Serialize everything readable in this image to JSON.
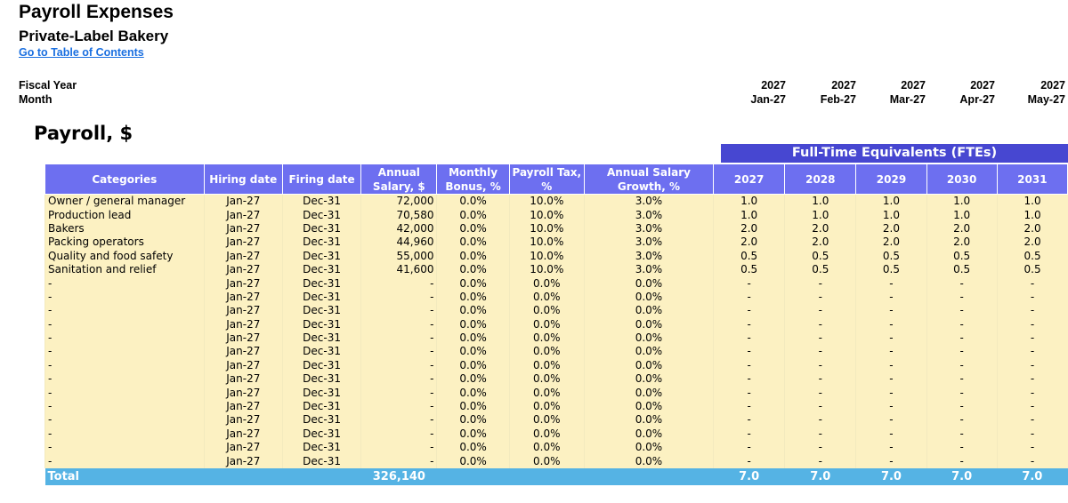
{
  "header": {
    "title": "Payroll Expenses",
    "subtitle": "Private-Label Bakery",
    "toc_link": "Go to Table of Contents",
    "fiscal_year_label": "Fiscal Year",
    "month_label": "Month",
    "months": [
      {
        "year": "2027",
        "month": "Jan-27"
      },
      {
        "year": "2027",
        "month": "Feb-27"
      },
      {
        "year": "2027",
        "month": "Mar-27"
      },
      {
        "year": "2027",
        "month": "Apr-27"
      },
      {
        "year": "2027",
        "month": "May-27"
      }
    ]
  },
  "section_title": "Payroll, $",
  "fte_banner": "Full-Time Equivalents (FTEs)",
  "columns": [
    "Categories",
    "Hiring date",
    "Firing date",
    "Annual Salary, $",
    "Monthly Bonus, %",
    "Payroll Tax, %",
    "Annual Salary Growth, %",
    "2027",
    "2028",
    "2029",
    "2030",
    "2031"
  ],
  "rows": [
    {
      "category": "Owner / general manager",
      "hiring": "Jan-27",
      "firing": "Dec-31",
      "salary": "72,000",
      "bonus": "0.0%",
      "tax": "10.0%",
      "growth": "3.0%",
      "fte": [
        "1.0",
        "1.0",
        "1.0",
        "1.0",
        "1.0"
      ]
    },
    {
      "category": "Production lead",
      "hiring": "Jan-27",
      "firing": "Dec-31",
      "salary": "70,580",
      "bonus": "0.0%",
      "tax": "10.0%",
      "growth": "3.0%",
      "fte": [
        "1.0",
        "1.0",
        "1.0",
        "1.0",
        "1.0"
      ]
    },
    {
      "category": "Bakers",
      "hiring": "Jan-27",
      "firing": "Dec-31",
      "salary": "42,000",
      "bonus": "0.0%",
      "tax": "10.0%",
      "growth": "3.0%",
      "fte": [
        "2.0",
        "2.0",
        "2.0",
        "2.0",
        "2.0"
      ]
    },
    {
      "category": "Packing operators",
      "hiring": "Jan-27",
      "firing": "Dec-31",
      "salary": "44,960",
      "bonus": "0.0%",
      "tax": "10.0%",
      "growth": "3.0%",
      "fte": [
        "2.0",
        "2.0",
        "2.0",
        "2.0",
        "2.0"
      ]
    },
    {
      "category": "Quality and food safety",
      "hiring": "Jan-27",
      "firing": "Dec-31",
      "salary": "55,000",
      "bonus": "0.0%",
      "tax": "10.0%",
      "growth": "3.0%",
      "fte": [
        "0.5",
        "0.5",
        "0.5",
        "0.5",
        "0.5"
      ]
    },
    {
      "category": "Sanitation and relief",
      "hiring": "Jan-27",
      "firing": "Dec-31",
      "salary": "41,600",
      "bonus": "0.0%",
      "tax": "10.0%",
      "growth": "3.0%",
      "fte": [
        "0.5",
        "0.5",
        "0.5",
        "0.5",
        "0.5"
      ]
    },
    {
      "category": "-",
      "hiring": "Jan-27",
      "firing": "Dec-31",
      "salary": "-",
      "bonus": "0.0%",
      "tax": "0.0%",
      "growth": "0.0%",
      "fte": [
        "-",
        "-",
        "-",
        "-",
        "-"
      ]
    },
    {
      "category": "-",
      "hiring": "Jan-27",
      "firing": "Dec-31",
      "salary": "-",
      "bonus": "0.0%",
      "tax": "0.0%",
      "growth": "0.0%",
      "fte": [
        "-",
        "-",
        "-",
        "-",
        "-"
      ]
    },
    {
      "category": "-",
      "hiring": "Jan-27",
      "firing": "Dec-31",
      "salary": "-",
      "bonus": "0.0%",
      "tax": "0.0%",
      "growth": "0.0%",
      "fte": [
        "-",
        "-",
        "-",
        "-",
        "-"
      ]
    },
    {
      "category": "-",
      "hiring": "Jan-27",
      "firing": "Dec-31",
      "salary": "-",
      "bonus": "0.0%",
      "tax": "0.0%",
      "growth": "0.0%",
      "fte": [
        "-",
        "-",
        "-",
        "-",
        "-"
      ]
    },
    {
      "category": "-",
      "hiring": "Jan-27",
      "firing": "Dec-31",
      "salary": "-",
      "bonus": "0.0%",
      "tax": "0.0%",
      "growth": "0.0%",
      "fte": [
        "-",
        "-",
        "-",
        "-",
        "-"
      ]
    },
    {
      "category": "-",
      "hiring": "Jan-27",
      "firing": "Dec-31",
      "salary": "-",
      "bonus": "0.0%",
      "tax": "0.0%",
      "growth": "0.0%",
      "fte": [
        "-",
        "-",
        "-",
        "-",
        "-"
      ]
    },
    {
      "category": "-",
      "hiring": "Jan-27",
      "firing": "Dec-31",
      "salary": "-",
      "bonus": "0.0%",
      "tax": "0.0%",
      "growth": "0.0%",
      "fte": [
        "-",
        "-",
        "-",
        "-",
        "-"
      ]
    },
    {
      "category": "-",
      "hiring": "Jan-27",
      "firing": "Dec-31",
      "salary": "-",
      "bonus": "0.0%",
      "tax": "0.0%",
      "growth": "0.0%",
      "fte": [
        "-",
        "-",
        "-",
        "-",
        "-"
      ]
    },
    {
      "category": "-",
      "hiring": "Jan-27",
      "firing": "Dec-31",
      "salary": "-",
      "bonus": "0.0%",
      "tax": "0.0%",
      "growth": "0.0%",
      "fte": [
        "-",
        "-",
        "-",
        "-",
        "-"
      ]
    },
    {
      "category": "-",
      "hiring": "Jan-27",
      "firing": "Dec-31",
      "salary": "-",
      "bonus": "0.0%",
      "tax": "0.0%",
      "growth": "0.0%",
      "fte": [
        "-",
        "-",
        "-",
        "-",
        "-"
      ]
    },
    {
      "category": "-",
      "hiring": "Jan-27",
      "firing": "Dec-31",
      "salary": "-",
      "bonus": "0.0%",
      "tax": "0.0%",
      "growth": "0.0%",
      "fte": [
        "-",
        "-",
        "-",
        "-",
        "-"
      ]
    },
    {
      "category": "-",
      "hiring": "Jan-27",
      "firing": "Dec-31",
      "salary": "-",
      "bonus": "0.0%",
      "tax": "0.0%",
      "growth": "0.0%",
      "fte": [
        "-",
        "-",
        "-",
        "-",
        "-"
      ]
    },
    {
      "category": "-",
      "hiring": "Jan-27",
      "firing": "Dec-31",
      "salary": "-",
      "bonus": "0.0%",
      "tax": "0.0%",
      "growth": "0.0%",
      "fte": [
        "-",
        "-",
        "-",
        "-",
        "-"
      ]
    },
    {
      "category": "-",
      "hiring": "Jan-27",
      "firing": "Dec-31",
      "salary": "-",
      "bonus": "0.0%",
      "tax": "0.0%",
      "growth": "0.0%",
      "fte": [
        "-",
        "-",
        "-",
        "-",
        "-"
      ]
    }
  ],
  "total": {
    "label": "Total",
    "salary": "326,140",
    "fte": [
      "7.0",
      "7.0",
      "7.0",
      "7.0",
      "7.0"
    ]
  },
  "colors": {
    "header_bg": "#6d6ff0",
    "banner_bg": "#4747d1",
    "row_bg": "#fcf1c2",
    "total_bg": "#55b3e4",
    "link": "#1a6fe0"
  }
}
